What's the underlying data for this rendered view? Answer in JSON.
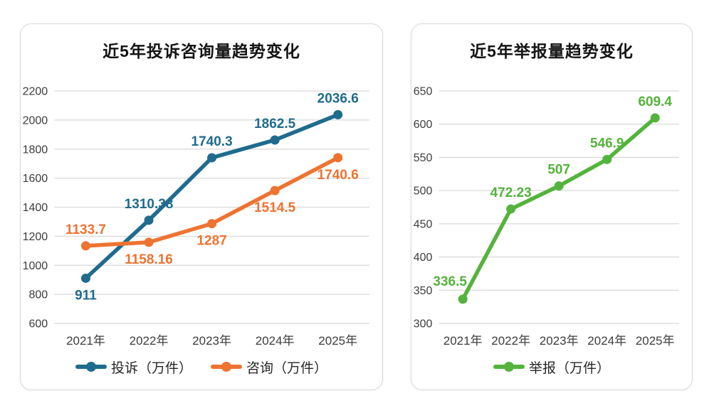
{
  "chart_data": [
    {
      "type": "line",
      "title": "近5年投诉咨询量趋势变化",
      "categories": [
        "2021年",
        "2022年",
        "2023年",
        "2024年",
        "2025年"
      ],
      "series": [
        {
          "name": "投诉（万件）",
          "color": "#1F6B8D",
          "values": [
            911,
            1310.38,
            1740.3,
            1862.5,
            2036.6
          ],
          "label_positions": [
            "below",
            "above",
            "above",
            "above",
            "above"
          ]
        },
        {
          "name": "咨询（万件）",
          "color": "#ED7331",
          "values": [
            1133.7,
            1158.16,
            1287,
            1514.5,
            1740.6
          ],
          "label_positions": [
            "above",
            "below",
            "below",
            "below",
            "below"
          ]
        }
      ],
      "xlabel": "",
      "ylabel": "",
      "ylim": [
        600,
        2200
      ],
      "y_step": 200,
      "grid": true,
      "legend_position": "bottom"
    },
    {
      "type": "line",
      "title": "近5年举报量趋势变化",
      "categories": [
        "2021年",
        "2022年",
        "2023年",
        "2024年",
        "2025年"
      ],
      "series": [
        {
          "name": "举报（万件）",
          "color": "#54B33C",
          "values": [
            336.5,
            472.23,
            507,
            546.9,
            609.4
          ],
          "label_positions": [
            "above-left",
            "above",
            "above",
            "above",
            "above"
          ]
        }
      ],
      "xlabel": "",
      "ylabel": "",
      "ylim": [
        300,
        650
      ],
      "y_step": 50,
      "grid": true,
      "legend_position": "bottom"
    }
  ],
  "styles": {
    "grid_color": "#D9D9D9",
    "tick_label_color": "#3D3D3D",
    "title_color": "#141414",
    "card_border_color": "#D9D9D9",
    "background_color": "#FFFFFF"
  }
}
